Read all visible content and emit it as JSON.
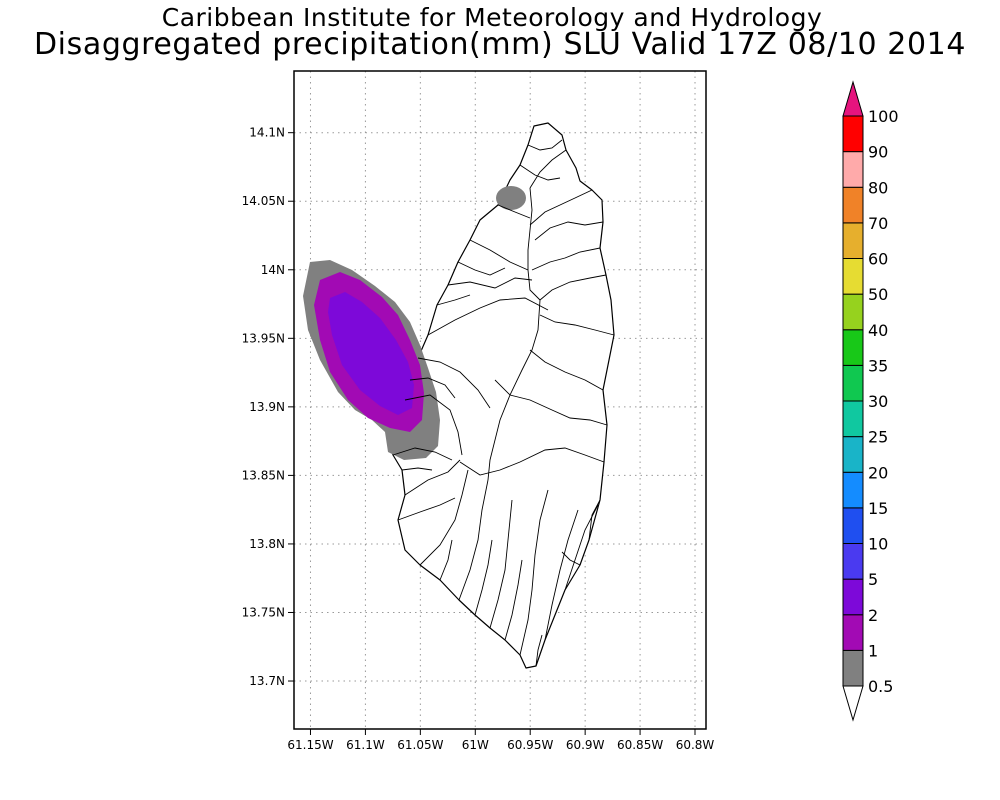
{
  "header": {
    "institution": "Caribbean Institute for Meteorology and Hydrology",
    "product": "Disaggregated precipitation(mm) SLU Valid 17Z 08/10 2014"
  },
  "map": {
    "lon_range": [
      -61.165,
      -60.79
    ],
    "lat_range": [
      13.665,
      14.145
    ],
    "lon_ticks": [
      {
        "value": -61.15,
        "label": "61.15W"
      },
      {
        "value": -61.1,
        "label": "61.1W"
      },
      {
        "value": -61.05,
        "label": "61.05W"
      },
      {
        "value": -61.0,
        "label": "61W"
      },
      {
        "value": -60.95,
        "label": "60.95W"
      },
      {
        "value": -60.9,
        "label": "60.9W"
      },
      {
        "value": -60.85,
        "label": "60.85W"
      },
      {
        "value": -60.8,
        "label": "60.8W"
      }
    ],
    "lat_ticks": [
      {
        "value": 14.1,
        "label": "14.1N"
      },
      {
        "value": 14.05,
        "label": "14.05N"
      },
      {
        "value": 14.0,
        "label": "14N"
      },
      {
        "value": 13.95,
        "label": "13.95N"
      },
      {
        "value": 13.9,
        "label": "13.9N"
      },
      {
        "value": 13.85,
        "label": "13.85N"
      },
      {
        "value": 13.8,
        "label": "13.8N"
      },
      {
        "value": 13.75,
        "label": "13.75N"
      },
      {
        "value": 13.7,
        "label": "13.7N"
      }
    ],
    "grid": "dotted",
    "island": "Saint Lucia"
  },
  "colorbar": {
    "bins": [
      {
        "label": "0.5",
        "color": "#808080"
      },
      {
        "label": "1",
        "color": "#a20ab4"
      },
      {
        "label": "2",
        "color": "#7d09d9"
      },
      {
        "label": "5",
        "color": "#4a3af0"
      },
      {
        "label": "10",
        "color": "#1f4ff0"
      },
      {
        "label": "15",
        "color": "#148cff"
      },
      {
        "label": "20",
        "color": "#19b4c8"
      },
      {
        "label": "25",
        "color": "#10c8a0"
      },
      {
        "label": "30",
        "color": "#10c850"
      },
      {
        "label": "35",
        "color": "#18c818"
      },
      {
        "label": "40",
        "color": "#96d21e"
      },
      {
        "label": "50",
        "color": "#e6dc32"
      },
      {
        "label": "60",
        "color": "#e6af2d"
      },
      {
        "label": "70",
        "color": "#f08228"
      },
      {
        "label": "80",
        "color": "#ffaaaa"
      },
      {
        "label": "90",
        "color": "#ff0000"
      },
      {
        "label": "100",
        "color": "#f03c3c"
      }
    ],
    "over_color": "#e6147e",
    "under_color": "#ffffff"
  },
  "precip_areas": [
    {
      "level": "0.5",
      "color": "#808080"
    },
    {
      "level": "1",
      "color": "#a20ab4"
    },
    {
      "level": "2",
      "color": "#7d09d9"
    }
  ]
}
